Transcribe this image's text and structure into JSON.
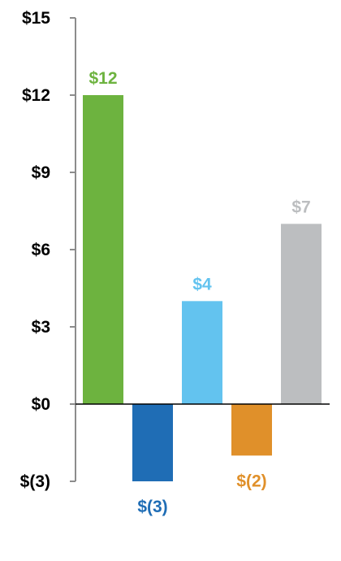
{
  "chart_data": {
    "type": "bar",
    "title": "",
    "xlabel": "",
    "ylabel": "",
    "ylim": [
      -3,
      15
    ],
    "yticks": [
      -3,
      0,
      3,
      6,
      9,
      12,
      15
    ],
    "ytick_labels": [
      "$(3)",
      "$0",
      "$3",
      "$6",
      "$9",
      "$12",
      "$15"
    ],
    "grid": false,
    "legend": "none",
    "values": [
      12,
      -3,
      4,
      -2,
      7
    ],
    "data_labels": [
      "$12",
      "$(3)",
      "$4",
      "$(2)",
      "$7"
    ],
    "colors": [
      "#6db33f",
      "#1f6db5",
      "#63c3ef",
      "#e0902a",
      "#bcbec0"
    ]
  }
}
